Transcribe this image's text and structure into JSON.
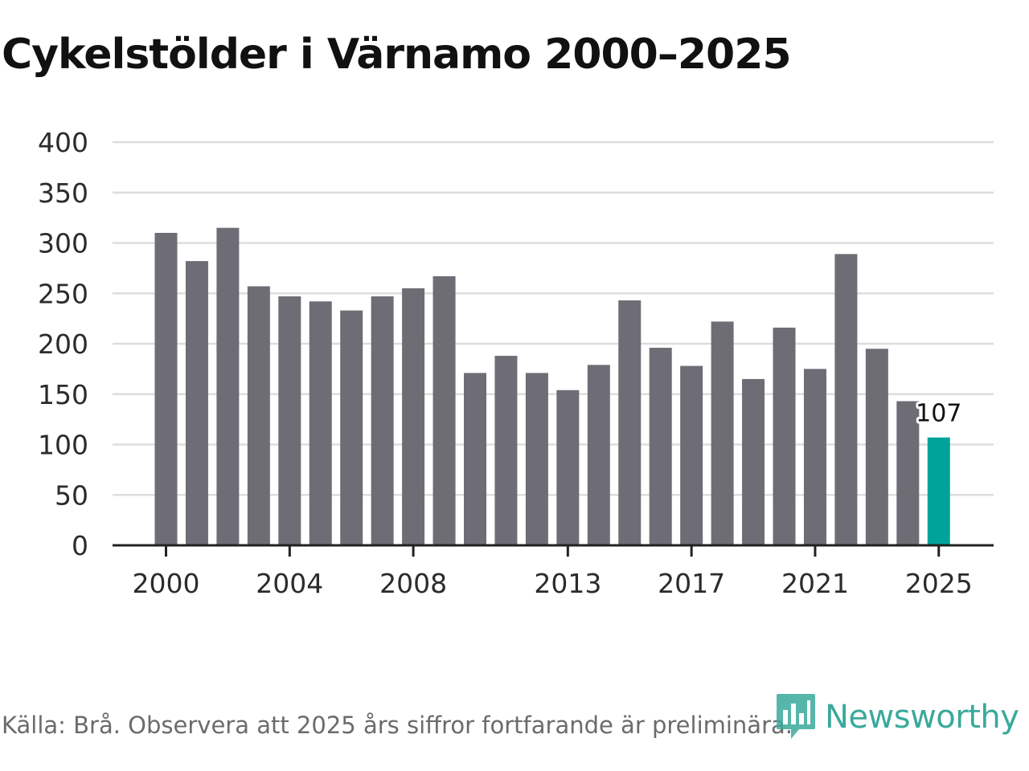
{
  "title": "Cykelstölder i Värnamo 2000–2025",
  "source_note": "Källa: Brå. Observera att 2025 års siffror fortfarande är preliminära.",
  "brand": {
    "name": "Newsworthy",
    "icon": "newsworthy-logo-icon"
  },
  "colors": {
    "bar": "#6e6d75",
    "highlight": "#00a39a",
    "grid": "#dddddd",
    "axis": "#222222",
    "brand": "#3aa99b"
  },
  "chart_data": {
    "type": "bar",
    "title": "Cykelstölder i Värnamo 2000–2025",
    "xlabel": "",
    "ylabel": "",
    "ylim": [
      0,
      400
    ],
    "yticks": [
      0,
      50,
      100,
      150,
      200,
      250,
      300,
      350,
      400
    ],
    "xtick_labels": [
      "2000",
      "2004",
      "2008",
      "2013",
      "2017",
      "2021",
      "2025"
    ],
    "grid": true,
    "categories": [
      "2000",
      "2001",
      "2002",
      "2003",
      "2004",
      "2005",
      "2006",
      "2007",
      "2008",
      "2009",
      "2010",
      "2011",
      "2012",
      "2013",
      "2014",
      "2015",
      "2016",
      "2017",
      "2018",
      "2019",
      "2020",
      "2021",
      "2022",
      "2023",
      "2024",
      "2025"
    ],
    "values": [
      310,
      282,
      315,
      257,
      247,
      242,
      233,
      247,
      255,
      267,
      171,
      188,
      171,
      154,
      179,
      243,
      196,
      178,
      222,
      165,
      216,
      175,
      289,
      195,
      143,
      107
    ],
    "highlight": {
      "category": "2025",
      "label": "107"
    }
  }
}
